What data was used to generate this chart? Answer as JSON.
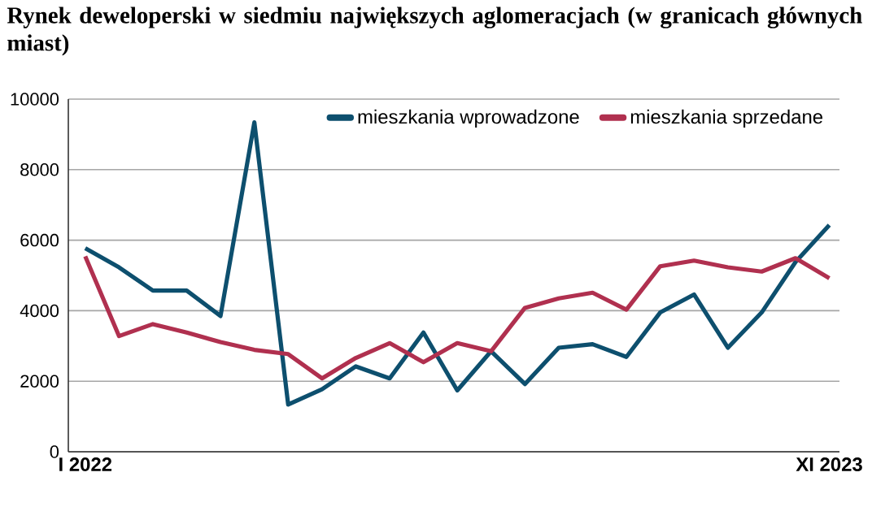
{
  "chart_data": {
    "type": "line",
    "title": "Rynek deweloperski w siedmiu największych aglomeracjach (w granicach głównych miast)",
    "categories": [
      "I 2022",
      null,
      null,
      null,
      null,
      null,
      null,
      null,
      null,
      null,
      null,
      null,
      null,
      null,
      null,
      null,
      null,
      null,
      null,
      null,
      null,
      null,
      "XI 2023"
    ],
    "series": [
      {
        "name": "mieszkania wprowadzone",
        "color": "#0d4f6e",
        "values": [
          5770,
          5230,
          4570,
          4570,
          3850,
          9340,
          1340,
          1770,
          2420,
          2080,
          3380,
          1740,
          2850,
          1920,
          2950,
          3050,
          2690,
          3950,
          4460,
          2950,
          3950,
          5380,
          6430
        ]
      },
      {
        "name": "mieszkania sprzedane",
        "color": "#b0304f",
        "values": [
          5540,
          3280,
          3620,
          3380,
          3110,
          2890,
          2770,
          2080,
          2660,
          3080,
          2540,
          3080,
          2850,
          4080,
          4350,
          4510,
          4030,
          5260,
          5420,
          5230,
          5110,
          5490,
          4920
        ]
      }
    ],
    "ylim": [
      0,
      10000
    ],
    "yticks": [
      0,
      2000,
      4000,
      6000,
      8000,
      10000
    ],
    "grid": "y",
    "legend": "top right",
    "marker": "none",
    "line_style": "solid"
  }
}
